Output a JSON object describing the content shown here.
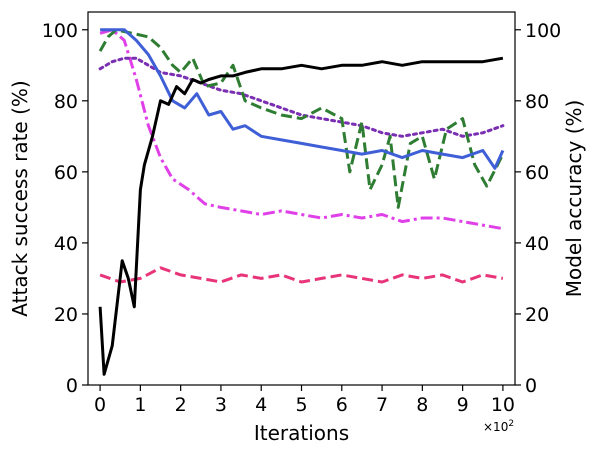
{
  "chart_data": {
    "type": "line",
    "title": "",
    "xlabel": "Iterations",
    "ylabel": "Attack success rate (%)",
    "ylabel_right": "Model accuracy (%)",
    "x_scale_label": "×10",
    "x_scale_exp": "2",
    "xlim": [
      -0.3,
      10.3
    ],
    "ylim": [
      0,
      105
    ],
    "ylim_right": [
      0,
      105
    ],
    "x_ticks": [
      "0",
      "1",
      "2",
      "3",
      "4",
      "5",
      "6",
      "7",
      "8",
      "9",
      "10"
    ],
    "y_ticks": [
      "0",
      "20",
      "40",
      "60",
      "80",
      "100"
    ],
    "y_ticks_right": [
      "0",
      "20",
      "40",
      "60",
      "80",
      "100"
    ],
    "grid": false,
    "legend": "none",
    "series": [
      {
        "color": "#e8357a",
        "style": "dashed",
        "axis": "left",
        "x": [
          0,
          0.5,
          1,
          1.5,
          2,
          2.5,
          3,
          3.5,
          4,
          4.5,
          5,
          5.5,
          6,
          6.5,
          7,
          7.5,
          8,
          8.5,
          9,
          9.5,
          10
        ],
        "y": [
          31,
          29,
          30,
          33,
          31,
          30,
          29,
          31,
          30,
          31,
          29,
          30,
          31,
          30,
          29,
          31,
          30,
          31,
          29,
          31,
          30
        ]
      },
      {
        "color": "#e040e8",
        "style": "dashdot",
        "axis": "left",
        "x": [
          0,
          0.3,
          0.6,
          0.9,
          1.2,
          1.5,
          1.8,
          2.2,
          2.6,
          3,
          3.5,
          4,
          4.5,
          5,
          5.5,
          6,
          6.5,
          7,
          7.5,
          8,
          8.5,
          9,
          9.5,
          10
        ],
        "y": [
          99,
          100,
          97,
          86,
          73,
          64,
          58,
          55,
          51,
          50,
          49,
          48,
          49,
          48,
          47,
          48,
          47,
          48,
          46,
          47,
          47,
          46,
          45,
          44
        ]
      },
      {
        "color": "#7a2fb3",
        "style": "dotted",
        "axis": "left",
        "x": [
          0,
          0.3,
          0.6,
          0.9,
          1.2,
          1.5,
          2,
          2.5,
          3,
          3.5,
          4,
          4.5,
          5,
          5.5,
          6,
          6.5,
          7,
          7.5,
          8,
          8.5,
          9,
          9.5,
          10
        ],
        "y": [
          89,
          91,
          92,
          92,
          90,
          88,
          87,
          85,
          83,
          82,
          80,
          78,
          76,
          75,
          74,
          73,
          71,
          70,
          71,
          72,
          70,
          71,
          73
        ]
      },
      {
        "color": "#2e7d32",
        "style": "dashed",
        "axis": "left",
        "x": [
          0,
          0.2,
          0.4,
          0.8,
          1.2,
          1.5,
          1.8,
          2,
          2.3,
          2.6,
          3,
          3.3,
          3.6,
          4,
          4.5,
          5,
          5.5,
          6,
          6.2,
          6.5,
          6.7,
          7,
          7.2,
          7.4,
          7.7,
          8,
          8.3,
          8.6,
          9,
          9.3,
          9.6,
          10
        ],
        "y": [
          94,
          98,
          100,
          99,
          98,
          95,
          90,
          88,
          92,
          84,
          85,
          90,
          80,
          78,
          76,
          75,
          78,
          75,
          60,
          74,
          55,
          62,
          70,
          50,
          68,
          70,
          58,
          72,
          75,
          62,
          56,
          65
        ]
      },
      {
        "color": "#3f5fd6",
        "style": "solid",
        "axis": "left",
        "x": [
          0,
          0.3,
          0.6,
          0.9,
          1.2,
          1.5,
          1.8,
          2.1,
          2.4,
          2.7,
          3,
          3.3,
          3.6,
          4,
          4.5,
          5,
          5.5,
          6,
          6.5,
          7,
          7.5,
          8,
          8.5,
          9,
          9.5,
          9.8,
          10
        ],
        "y": [
          100,
          100,
          100,
          97,
          93,
          87,
          80,
          78,
          82,
          76,
          77,
          72,
          73,
          70,
          69,
          68,
          67,
          66,
          65,
          66,
          64,
          66,
          65,
          64,
          66,
          61,
          66
        ]
      },
      {
        "color": "#000000",
        "style": "solid",
        "axis": "right",
        "x": [
          0,
          0.1,
          0.3,
          0.55,
          0.7,
          0.85,
          1,
          1.1,
          1.3,
          1.5,
          1.7,
          1.9,
          2.1,
          2.3,
          2.5,
          2.7,
          3,
          3.3,
          3.6,
          4,
          4.5,
          5,
          5.5,
          6,
          6.5,
          7,
          7.5,
          8,
          8.5,
          9,
          9.5,
          10
        ],
        "y": [
          22,
          3,
          11,
          35,
          30,
          22,
          55,
          62,
          70,
          80,
          79,
          84,
          82,
          86,
          85,
          86,
          87,
          87,
          88,
          89,
          89,
          90,
          89,
          90,
          90,
          91,
          90,
          91,
          91,
          91,
          91,
          92
        ]
      }
    ]
  }
}
